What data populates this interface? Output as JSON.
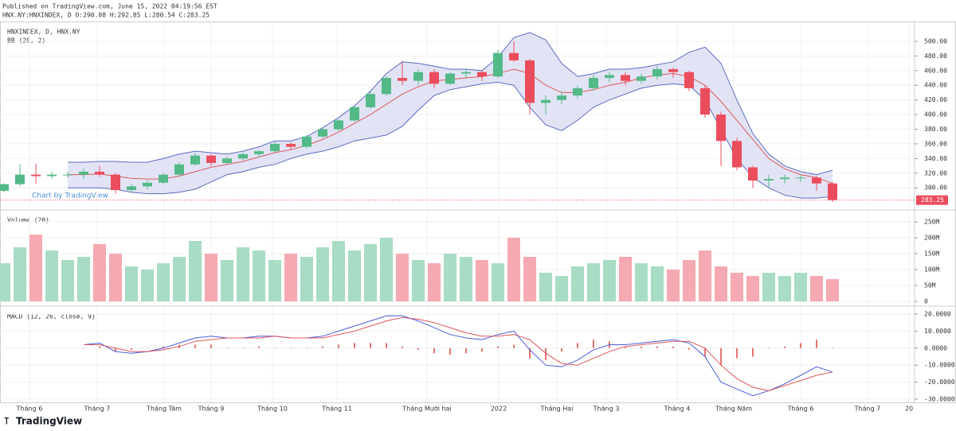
{
  "header": {
    "published": "Published on TradingView.com, June 15, 2022 04:19:56 EST",
    "ohlc": "HNX.NY:HNXINDEX, D O:290.08 H:292.85 L:280.54 C:283.25"
  },
  "footer": {
    "brand": "TradingView"
  },
  "chart_data": [
    {
      "type": "candlestick",
      "title": "HNXINDEX, D, HNX.NY",
      "subtitle": "BB (20, 2)",
      "watermark": "Chart by TradingView",
      "last_price": 283.25,
      "up_color": "#53b987",
      "down_color": "#eb4d5c",
      "xlim": [
        -0.25,
        57.15
      ],
      "xticks": [
        {
          "value": 1.6,
          "label": "Tháng 6"
        },
        {
          "value": 5.85,
          "label": "Tháng 7"
        },
        {
          "value": 10.05,
          "label": "Tháng Tám"
        },
        {
          "value": 13,
          "label": "Tháng 9"
        },
        {
          "value": 16.85,
          "label": "Tháng 10"
        },
        {
          "value": 20.9,
          "label": "Tháng 11"
        },
        {
          "value": 26.55,
          "label": "Tháng Mười hai"
        },
        {
          "value": 31.05,
          "label": "2022"
        },
        {
          "value": 34.7,
          "label": "Tháng Hai"
        },
        {
          "value": 37.8,
          "label": "Tháng 3"
        },
        {
          "value": 42.25,
          "label": "Tháng 4"
        },
        {
          "value": 45.8,
          "label": "Tháng Năm"
        },
        {
          "value": 50,
          "label": "Tháng 6"
        },
        {
          "value": 54.2,
          "label": "Tháng 7"
        },
        {
          "value": 56.8,
          "label": "20"
        }
      ],
      "ylim": [
        272,
        526
      ],
      "yticks": [
        {
          "value": 300,
          "label": "300.00"
        },
        {
          "value": 320,
          "label": "320.00"
        },
        {
          "value": 340,
          "label": "340.00"
        },
        {
          "value": 360,
          "label": "360.00"
        },
        {
          "value": 380,
          "label": "380.00"
        },
        {
          "value": 400,
          "label": "400.00"
        },
        {
          "value": 420,
          "label": "420.00"
        },
        {
          "value": 440,
          "label": "440.00"
        },
        {
          "value": 460,
          "label": "460.00"
        },
        {
          "value": 480,
          "label": "480.00"
        },
        {
          "value": 500,
          "label": "500.00"
        }
      ],
      "open": [
        296,
        305,
        318,
        316,
        318,
        318,
        322,
        318,
        297,
        302,
        307,
        318,
        332,
        344,
        334,
        340,
        346,
        350,
        360,
        356,
        370,
        380,
        392,
        410,
        428,
        450,
        446,
        458,
        442,
        456,
        458,
        452,
        484,
        474,
        416,
        420,
        426,
        436,
        450,
        454,
        446,
        452,
        462,
        458,
        436,
        400,
        364,
        328,
        310,
        312,
        314,
        314,
        306
      ],
      "high": [
        306,
        332,
        333,
        322,
        322,
        326,
        330,
        320,
        305,
        310,
        320,
        335,
        348,
        346,
        342,
        348,
        352,
        364,
        362,
        372,
        382,
        394,
        412,
        432,
        452,
        472,
        462,
        462,
        458,
        462,
        460,
        488,
        500,
        476,
        426,
        432,
        440,
        454,
        458,
        458,
        456,
        466,
        464,
        460,
        440,
        404,
        368,
        330,
        318,
        318,
        318,
        316,
        308
      ],
      "low": [
        294,
        303,
        306,
        312,
        314,
        312,
        315,
        292,
        293,
        298,
        305,
        316,
        330,
        330,
        332,
        338,
        342,
        348,
        352,
        354,
        368,
        378,
        390,
        408,
        426,
        440,
        440,
        436,
        440,
        450,
        446,
        450,
        472,
        400,
        400,
        414,
        422,
        432,
        444,
        440,
        442,
        448,
        450,
        432,
        396,
        330,
        324,
        300,
        300,
        306,
        308,
        296,
        280.54
      ],
      "close": [
        305,
        318,
        316,
        318,
        318,
        322,
        318,
        297,
        302,
        307,
        318,
        332,
        344,
        334,
        340,
        346,
        350,
        360,
        356,
        370,
        380,
        392,
        410,
        428,
        450,
        446,
        458,
        442,
        456,
        458,
        452,
        484,
        474,
        416,
        420,
        426,
        436,
        450,
        454,
        446,
        452,
        462,
        458,
        436,
        400,
        364,
        328,
        310,
        312,
        314,
        314,
        306,
        283.25
      ],
      "bands": {
        "fill": "#d6d8f2",
        "edge_color": "#5c6bc0",
        "basis_color": "#e0575b",
        "upper": [
          null,
          null,
          null,
          null,
          335,
          335,
          336,
          336,
          335,
          335,
          340,
          346,
          350,
          348,
          346,
          350,
          356,
          364,
          364,
          370,
          382,
          396,
          412,
          432,
          456,
          472,
          470,
          466,
          462,
          462,
          460,
          478,
          505,
          512,
          502,
          470,
          452,
          456,
          462,
          462,
          464,
          468,
          472,
          485,
          492,
          470,
          420,
          374,
          346,
          330,
          322,
          318,
          324
        ],
        "basis": [
          null,
          null,
          null,
          null,
          318,
          318,
          319,
          316,
          313,
          312,
          312,
          316,
          322,
          328,
          332,
          336,
          342,
          348,
          352,
          358,
          366,
          376,
          388,
          400,
          414,
          428,
          438,
          446,
          448,
          450,
          452,
          456,
          462,
          456,
          440,
          430,
          430,
          434,
          440,
          444,
          450,
          454,
          456,
          452,
          440,
          418,
          392,
          366,
          340,
          326,
          318,
          314,
          306
        ],
        "lower": [
          null,
          null,
          null,
          null,
          300,
          300,
          300,
          298,
          294,
          292,
          292,
          294,
          298,
          308,
          318,
          322,
          328,
          332,
          340,
          346,
          350,
          356,
          364,
          368,
          372,
          384,
          406,
          426,
          434,
          438,
          442,
          444,
          440,
          410,
          386,
          378,
          392,
          410,
          420,
          428,
          436,
          440,
          442,
          440,
          420,
          380,
          340,
          314,
          300,
          290,
          286,
          286,
          288
        ]
      }
    },
    {
      "type": "bar",
      "title": "Volume (20)",
      "up_color": "#a8dcc4",
      "down_color": "#f5a9b1",
      "ylim": [
        -10000000,
        285000000
      ],
      "yticks": [
        0,
        {
          "value": 50000000,
          "label": "50M"
        },
        {
          "value": 100000000,
          "label": "100M"
        },
        {
          "value": 150000000,
          "label": "150M"
        },
        {
          "value": 200000000,
          "label": "200M"
        },
        {
          "value": 250000000,
          "label": "250M"
        }
      ],
      "values": [
        120000000,
        170000000,
        210000000,
        160000000,
        130000000,
        140000000,
        180000000,
        150000000,
        110000000,
        100000000,
        120000000,
        140000000,
        190000000,
        150000000,
        130000000,
        170000000,
        160000000,
        130000000,
        150000000,
        140000000,
        170000000,
        190000000,
        160000000,
        180000000,
        200000000,
        150000000,
        130000000,
        120000000,
        150000000,
        140000000,
        130000000,
        120000000,
        200000000,
        140000000,
        90000000,
        80000000,
        110000000,
        120000000,
        130000000,
        140000000,
        120000000,
        110000000,
        100000000,
        130000000,
        160000000,
        110000000,
        90000000,
        80000000,
        90000000,
        80000000,
        90000000,
        80000000,
        70000000
      ]
    },
    {
      "type": "line",
      "title": "MACD (12, 26, close, 9)",
      "ylim": [
        -31.4,
        24.2
      ],
      "yticks": [
        {
          "value": 20,
          "label": "20.0000"
        },
        {
          "value": 10,
          "label": "10.0000"
        },
        {
          "value": 0,
          "label": "0.0000"
        },
        {
          "value": -10,
          "label": "-10.0000"
        },
        {
          "value": -20,
          "label": "-20.0000"
        },
        {
          "value": -30,
          "label": "-30.0000"
        }
      ],
      "macd": {
        "color": "#4a5bdc",
        "values": [
          null,
          null,
          null,
          null,
          null,
          2,
          3,
          -2,
          -3,
          -2,
          0,
          3,
          6,
          7,
          6,
          6,
          7,
          7,
          6,
          6,
          7,
          10,
          13,
          16,
          19,
          19,
          16,
          12,
          8,
          6,
          5,
          8,
          10,
          -1,
          -10,
          -11,
          -7,
          -1,
          2,
          2,
          3,
          4,
          5,
          3,
          -5,
          -20,
          -24,
          -28,
          -25,
          -21,
          -16,
          -11,
          -14
        ]
      },
      "signal": {
        "color": "#e0575b",
        "values": [
          null,
          null,
          null,
          null,
          null,
          2,
          2,
          0,
          -2,
          -2,
          -1,
          1,
          4,
          5,
          6,
          6,
          6,
          7,
          6,
          6,
          6,
          8,
          10,
          13,
          16,
          18,
          17,
          15,
          12,
          9,
          7,
          7,
          8,
          5,
          -3,
          -9,
          -10,
          -6,
          -2,
          1,
          2,
          3,
          4,
          4,
          0,
          -10,
          -18,
          -23,
          -25,
          -22,
          -19,
          -16,
          -14
        ]
      },
      "histogram": {
        "color": "#e57373",
        "values": [
          null,
          null,
          null,
          null,
          null,
          0,
          1,
          -2,
          -1,
          0,
          1,
          2,
          2,
          2,
          0,
          0,
          1,
          0,
          0,
          0,
          1,
          2,
          3,
          3,
          3,
          1,
          -1,
          -3,
          -4,
          -3,
          -2,
          1,
          2,
          -6,
          -7,
          -2,
          3,
          5,
          4,
          1,
          1,
          1,
          1,
          -1,
          -5,
          -10,
          -6,
          -5,
          0,
          1,
          3,
          5,
          0
        ]
      }
    }
  ]
}
